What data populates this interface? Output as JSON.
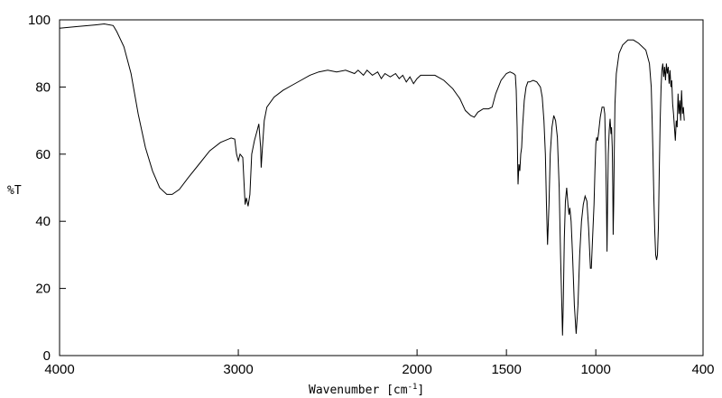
{
  "chart_data": {
    "type": "line",
    "title": "",
    "xlabel": "Wavenumber [cm",
    "xlabel_superscript": "-1",
    "xlabel_close": "]",
    "ylabel": "%T",
    "xlim": [
      4000,
      400
    ],
    "ylim": [
      0,
      100
    ],
    "x_reversed": true,
    "grid": false,
    "legend": "none",
    "line_color": "#000000",
    "x_ticks": [
      4000,
      3000,
      2000,
      1500,
      1000,
      400
    ],
    "x_tick_labels": [
      "4000",
      "3000",
      "2000",
      "1500",
      "1000",
      "400"
    ],
    "y_ticks": [
      0,
      20,
      40,
      60,
      80,
      100
    ],
    "y_tick_labels": [
      "0",
      "20",
      "40",
      "60",
      "80",
      "100"
    ],
    "series": [
      {
        "points": [
          [
            4000,
            97.5
          ],
          [
            3900,
            98
          ],
          [
            3800,
            98.5
          ],
          [
            3750,
            98.8
          ],
          [
            3700,
            98.3
          ],
          [
            3680,
            96.5
          ],
          [
            3640,
            92
          ],
          [
            3600,
            84
          ],
          [
            3560,
            72
          ],
          [
            3520,
            62
          ],
          [
            3480,
            55
          ],
          [
            3440,
            50
          ],
          [
            3400,
            48
          ],
          [
            3370,
            48
          ],
          [
            3330,
            49.5
          ],
          [
            3280,
            53
          ],
          [
            3220,
            57
          ],
          [
            3160,
            61
          ],
          [
            3100,
            63.5
          ],
          [
            3040,
            64.8
          ],
          [
            3020,
            64.5
          ],
          [
            3010,
            60
          ],
          [
            3000,
            58
          ],
          [
            2990,
            60
          ],
          [
            2975,
            59
          ],
          [
            2962,
            45
          ],
          [
            2955,
            47
          ],
          [
            2945,
            44.5
          ],
          [
            2935,
            48
          ],
          [
            2925,
            60
          ],
          [
            2910,
            64
          ],
          [
            2895,
            67
          ],
          [
            2885,
            69
          ],
          [
            2875,
            62
          ],
          [
            2872,
            56
          ],
          [
            2865,
            62
          ],
          [
            2855,
            70
          ],
          [
            2840,
            74
          ],
          [
            2800,
            77
          ],
          [
            2750,
            79
          ],
          [
            2700,
            80.5
          ],
          [
            2650,
            82
          ],
          [
            2600,
            83.5
          ],
          [
            2550,
            84.5
          ],
          [
            2500,
            85
          ],
          [
            2450,
            84.5
          ],
          [
            2400,
            85
          ],
          [
            2350,
            84
          ],
          [
            2330,
            85
          ],
          [
            2300,
            83.5
          ],
          [
            2280,
            85
          ],
          [
            2250,
            83.5
          ],
          [
            2220,
            84.5
          ],
          [
            2200,
            82.5
          ],
          [
            2180,
            84
          ],
          [
            2150,
            83
          ],
          [
            2120,
            84
          ],
          [
            2100,
            82.5
          ],
          [
            2080,
            83.5
          ],
          [
            2060,
            81.5
          ],
          [
            2040,
            83
          ],
          [
            2020,
            81
          ],
          [
            2000,
            82.5
          ],
          [
            1980,
            83.5
          ],
          [
            1950,
            83.5
          ],
          [
            1900,
            83.5
          ],
          [
            1850,
            82
          ],
          [
            1800,
            79.5
          ],
          [
            1760,
            76.5
          ],
          [
            1730,
            73
          ],
          [
            1700,
            71.5
          ],
          [
            1680,
            71
          ],
          [
            1660,
            72.5
          ],
          [
            1630,
            73.5
          ],
          [
            1600,
            73.5
          ],
          [
            1580,
            74
          ],
          [
            1560,
            78
          ],
          [
            1530,
            82
          ],
          [
            1500,
            84
          ],
          [
            1480,
            84.5
          ],
          [
            1460,
            84
          ],
          [
            1450,
            83.5
          ],
          [
            1445,
            79
          ],
          [
            1440,
            68
          ],
          [
            1437,
            57
          ],
          [
            1435,
            51
          ],
          [
            1430,
            57
          ],
          [
            1425,
            55
          ],
          [
            1420,
            60
          ],
          [
            1415,
            62
          ],
          [
            1410,
            68
          ],
          [
            1400,
            76
          ],
          [
            1390,
            80
          ],
          [
            1380,
            81.5
          ],
          [
            1370,
            81.5
          ],
          [
            1350,
            82
          ],
          [
            1330,
            81.5
          ],
          [
            1310,
            80
          ],
          [
            1300,
            77
          ],
          [
            1290,
            70
          ],
          [
            1282,
            60
          ],
          [
            1276,
            45
          ],
          [
            1270,
            33
          ],
          [
            1262,
            45
          ],
          [
            1255,
            60
          ],
          [
            1245,
            68
          ],
          [
            1235,
            71.5
          ],
          [
            1225,
            70
          ],
          [
            1215,
            65
          ],
          [
            1205,
            50
          ],
          [
            1197,
            30
          ],
          [
            1190,
            15
          ],
          [
            1186,
            6
          ],
          [
            1182,
            15
          ],
          [
            1176,
            35
          ],
          [
            1170,
            46
          ],
          [
            1163,
            50
          ],
          [
            1156,
            45
          ],
          [
            1150,
            42
          ],
          [
            1145,
            44
          ],
          [
            1138,
            40
          ],
          [
            1130,
            30
          ],
          [
            1120,
            15
          ],
          [
            1110,
            6.5
          ],
          [
            1100,
            15
          ],
          [
            1090,
            30
          ],
          [
            1080,
            40
          ],
          [
            1070,
            45
          ],
          [
            1060,
            47.5
          ],
          [
            1050,
            46
          ],
          [
            1040,
            38
          ],
          [
            1030,
            26
          ],
          [
            1025,
            26
          ],
          [
            1018,
            35
          ],
          [
            1010,
            45
          ],
          [
            1005,
            55
          ],
          [
            1000,
            63
          ],
          [
            995,
            65
          ],
          [
            990,
            64
          ],
          [
            985,
            66
          ],
          [
            975,
            71
          ],
          [
            965,
            74
          ],
          [
            955,
            74
          ],
          [
            950,
            72
          ],
          [
            945,
            60
          ],
          [
            940,
            45
          ],
          [
            937,
            31
          ],
          [
            934,
            45
          ],
          [
            930,
            60
          ],
          [
            925,
            67
          ],
          [
            920,
            70.5
          ],
          [
            915,
            66
          ],
          [
            912,
            68
          ],
          [
            908,
            62
          ],
          [
            905,
            50
          ],
          [
            903,
            36
          ],
          [
            900,
            45
          ],
          [
            897,
            60
          ],
          [
            893,
            75
          ],
          [
            885,
            84
          ],
          [
            870,
            90
          ],
          [
            850,
            92.5
          ],
          [
            820,
            94
          ],
          [
            790,
            94
          ],
          [
            760,
            93
          ],
          [
            720,
            91
          ],
          [
            700,
            87
          ],
          [
            690,
            80
          ],
          [
            685,
            70
          ],
          [
            680,
            60
          ],
          [
            675,
            47
          ],
          [
            670,
            37
          ],
          [
            665,
            30
          ],
          [
            660,
            28.5
          ],
          [
            655,
            30
          ],
          [
            650,
            38
          ],
          [
            645,
            55
          ],
          [
            640,
            70
          ],
          [
            635,
            80
          ],
          [
            630,
            85
          ],
          [
            625,
            87
          ],
          [
            620,
            83
          ],
          [
            615,
            86
          ],
          [
            610,
            82
          ],
          [
            605,
            87
          ],
          [
            600,
            84
          ],
          [
            595,
            86
          ],
          [
            590,
            81
          ],
          [
            585,
            85
          ],
          [
            580,
            80
          ],
          [
            575,
            82
          ],
          [
            570,
            75
          ],
          [
            565,
            72
          ],
          [
            560,
            68
          ],
          [
            555,
            64
          ],
          [
            550,
            70
          ],
          [
            545,
            68
          ],
          [
            540,
            78
          ],
          [
            535,
            72
          ],
          [
            530,
            76
          ],
          [
            525,
            70
          ],
          [
            520,
            79
          ],
          [
            515,
            72
          ],
          [
            510,
            74
          ],
          [
            505,
            70
          ]
        ]
      }
    ]
  }
}
